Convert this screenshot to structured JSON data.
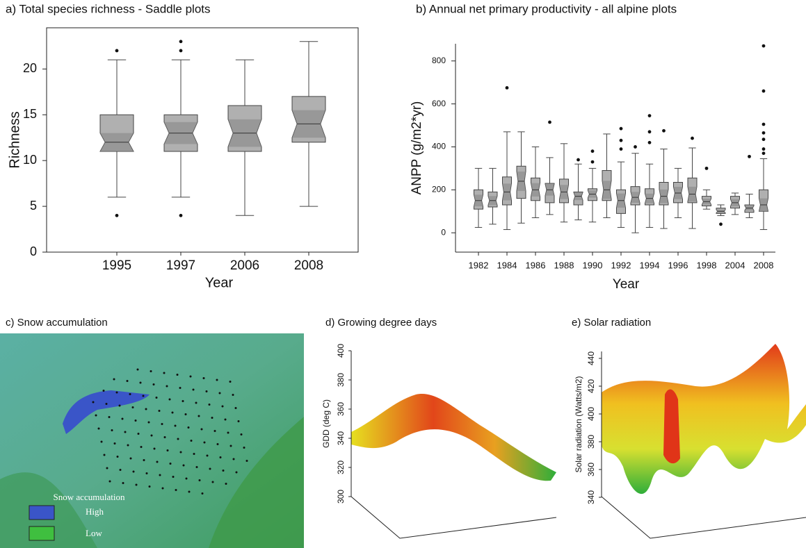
{
  "chart_data": [
    {
      "type": "box",
      "title": "a) Total species richness - Saddle plots",
      "xlabel": "Year",
      "ylabel": "Richness",
      "categories": [
        "1995",
        "1997",
        "2006",
        "2008"
      ],
      "boxes": [
        {
          "whisker_low": 6,
          "q1": 11,
          "median": 12,
          "q3": 15,
          "whisker_high": 21,
          "outliers": [
            4,
            22
          ]
        },
        {
          "whisker_low": 6,
          "q1": 11,
          "median": 13,
          "q3": 15,
          "whisker_high": 21,
          "outliers": [
            4,
            22,
            23
          ]
        },
        {
          "whisker_low": 4,
          "q1": 11,
          "median": 13,
          "q3": 16,
          "whisker_high": 21,
          "outliers": []
        },
        {
          "whisker_low": 5,
          "q1": 12,
          "median": 14,
          "q3": 17,
          "whisker_high": 23,
          "outliers": []
        }
      ],
      "ylim": [
        0,
        24.5
      ],
      "yticks": [
        0,
        5,
        10,
        15,
        20
      ],
      "color": "#b0b0b0"
    },
    {
      "type": "box",
      "title": "b) Annual net primary productivity - all alpine plots",
      "xlabel": "Year",
      "ylabel": "ANPP (g/m2*yr)",
      "categories": [
        "1982",
        null,
        "1984",
        null,
        "1986",
        null,
        "1988",
        null,
        "1990",
        null,
        "1992",
        null,
        "1994",
        null,
        "1996",
        null,
        "1998",
        null,
        "2004",
        null,
        "2008"
      ],
      "boxes": [
        {
          "whisker_low": 25,
          "q1": 110,
          "median": 150,
          "q3": 200,
          "whisker_high": 300,
          "outliers": []
        },
        {
          "whisker_low": 40,
          "q1": 120,
          "median": 150,
          "q3": 190,
          "whisker_high": 300,
          "outliers": []
        },
        {
          "whisker_low": 15,
          "q1": 130,
          "median": 190,
          "q3": 260,
          "whisker_high": 470,
          "outliers": [
            675
          ]
        },
        {
          "whisker_low": 45,
          "q1": 160,
          "median": 240,
          "q3": 310,
          "whisker_high": 470,
          "outliers": []
        },
        {
          "whisker_low": 70,
          "q1": 150,
          "median": 200,
          "q3": 255,
          "whisker_high": 400,
          "outliers": []
        },
        {
          "whisker_low": 85,
          "q1": 140,
          "median": 200,
          "q3": 230,
          "whisker_high": 350,
          "outliers": [
            515
          ]
        },
        {
          "whisker_low": 50,
          "q1": 140,
          "median": 190,
          "q3": 250,
          "whisker_high": 415,
          "outliers": []
        },
        {
          "whisker_low": 60,
          "q1": 130,
          "median": 170,
          "q3": 190,
          "whisker_high": 320,
          "outliers": [
            340
          ]
        },
        {
          "whisker_low": 50,
          "q1": 150,
          "median": 180,
          "q3": 205,
          "whisker_high": 300,
          "outliers": [
            330,
            380
          ]
        },
        {
          "whisker_low": 70,
          "q1": 150,
          "median": 200,
          "q3": 290,
          "whisker_high": 460,
          "outliers": []
        },
        {
          "whisker_low": 25,
          "q1": 90,
          "median": 150,
          "q3": 200,
          "whisker_high": 330,
          "outliers": [
            390,
            430,
            485
          ]
        },
        {
          "whisker_low": 0,
          "q1": 130,
          "median": 165,
          "q3": 215,
          "whisker_high": 370,
          "outliers": [
            400
          ]
        },
        {
          "whisker_low": 25,
          "q1": 130,
          "median": 160,
          "q3": 205,
          "whisker_high": 320,
          "outliers": [
            420,
            470,
            545
          ]
        },
        {
          "whisker_low": 20,
          "q1": 130,
          "median": 170,
          "q3": 235,
          "whisker_high": 390,
          "outliers": [
            475
          ]
        },
        {
          "whisker_low": 70,
          "q1": 140,
          "median": 185,
          "q3": 235,
          "whisker_high": 300,
          "outliers": []
        },
        {
          "whisker_low": 20,
          "q1": 140,
          "median": 180,
          "q3": 255,
          "whisker_high": 395,
          "outliers": [
            440
          ]
        },
        {
          "whisker_low": 110,
          "q1": 125,
          "median": 145,
          "q3": 170,
          "whisker_high": 200,
          "outliers": [
            300
          ]
        },
        {
          "whisker_low": 80,
          "q1": 90,
          "median": 100,
          "q3": 115,
          "whisker_high": 130,
          "outliers": [
            40
          ]
        },
        {
          "whisker_low": 85,
          "q1": 115,
          "median": 140,
          "q3": 170,
          "whisker_high": 185,
          "outliers": []
        },
        {
          "whisker_low": 70,
          "q1": 95,
          "median": 115,
          "q3": 130,
          "whisker_high": 180,
          "outliers": [
            355
          ]
        },
        {
          "whisker_low": 15,
          "q1": 100,
          "median": 130,
          "q3": 200,
          "whisker_high": 345,
          "outliers": [
            370,
            390,
            435,
            465,
            505,
            660,
            870
          ]
        }
      ],
      "ylim": [
        -90,
        880
      ],
      "yticks": [
        0,
        200,
        400,
        600,
        800
      ],
      "color": "#b0b0b0"
    },
    {
      "type": "surface",
      "title": "d) Growing degree days",
      "ylabel": "GDD (deg C)",
      "ylim": [
        300,
        400
      ],
      "yticks": [
        300,
        320,
        340,
        360,
        380,
        400
      ]
    },
    {
      "type": "surface",
      "title": "e) Solar radiation",
      "ylabel": "Solar radiation (Watts/m2)",
      "ylim": [
        340,
        445
      ],
      "yticks": [
        340,
        360,
        380,
        400,
        420,
        440
      ]
    }
  ],
  "map": {
    "title": "c) Snow accumulation",
    "legend": {
      "title": "Snow accumulation",
      "items": [
        "High",
        "Low"
      ]
    }
  }
}
